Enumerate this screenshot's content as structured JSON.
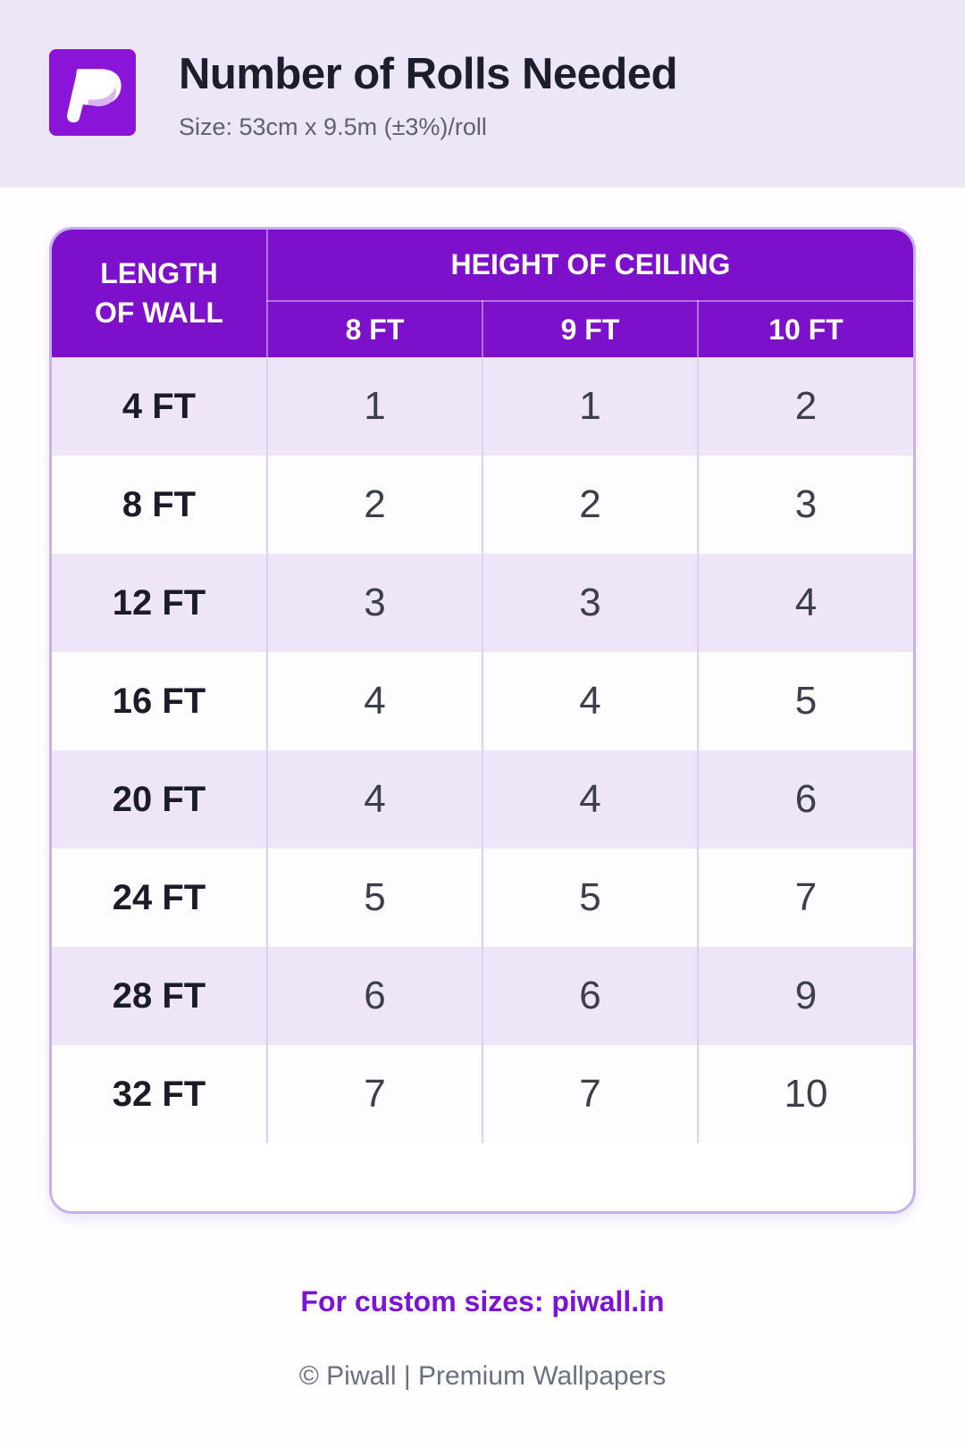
{
  "header": {
    "title": "Number of Rolls Needed",
    "subtitle": "Size: 53cm x 9.5m (±3%)/roll",
    "logo_icon": "piwall-p-icon"
  },
  "colors": {
    "brand_purple": "#7d10ca",
    "logo_purple": "#8a15d8",
    "row_lavender": "#eee5f8",
    "card_border": "#c7b0ee",
    "link_purple": "#7c13d6",
    "band_lavender": "#ece6f6"
  },
  "table": {
    "corner_line1": "LENGTH",
    "corner_line2": "OF WALL",
    "group_header": "HEIGHT OF CEILING",
    "col_headers": [
      "8 FT",
      "9 FT",
      "10 FT"
    ],
    "rows": [
      {
        "label": "4 FT",
        "values": [
          "1",
          "1",
          "2"
        ]
      },
      {
        "label": "8 FT",
        "values": [
          "2",
          "2",
          "3"
        ]
      },
      {
        "label": "12 FT",
        "values": [
          "3",
          "3",
          "4"
        ]
      },
      {
        "label": "16 FT",
        "values": [
          "4",
          "4",
          "5"
        ]
      },
      {
        "label": "20 FT",
        "values": [
          "4",
          "4",
          "6"
        ]
      },
      {
        "label": "24 FT",
        "values": [
          "5",
          "5",
          "7"
        ]
      },
      {
        "label": "28 FT",
        "values": [
          "6",
          "6",
          "9"
        ]
      },
      {
        "label": "32 FT",
        "values": [
          "7",
          "7",
          "10"
        ]
      }
    ]
  },
  "chart_data": {
    "type": "table",
    "title": "Number of Rolls Needed",
    "subtitle": "Size: 53cm x 9.5m (±3%)/roll",
    "row_header": "LENGTH OF WALL",
    "column_group_header": "HEIGHT OF CEILING",
    "columns": [
      "8 FT",
      "9 FT",
      "10 FT"
    ],
    "rows": [
      "4 FT",
      "8 FT",
      "12 FT",
      "16 FT",
      "20 FT",
      "24 FT",
      "28 FT",
      "32 FT"
    ],
    "values": [
      [
        1,
        1,
        2
      ],
      [
        2,
        2,
        3
      ],
      [
        3,
        3,
        4
      ],
      [
        4,
        4,
        5
      ],
      [
        4,
        4,
        6
      ],
      [
        5,
        5,
        7
      ],
      [
        6,
        6,
        9
      ],
      [
        7,
        7,
        10
      ]
    ]
  },
  "footer": {
    "custom_sizes": "For custom sizes: piwall.in",
    "copyright": "© Piwall | Premium Wallpapers"
  }
}
